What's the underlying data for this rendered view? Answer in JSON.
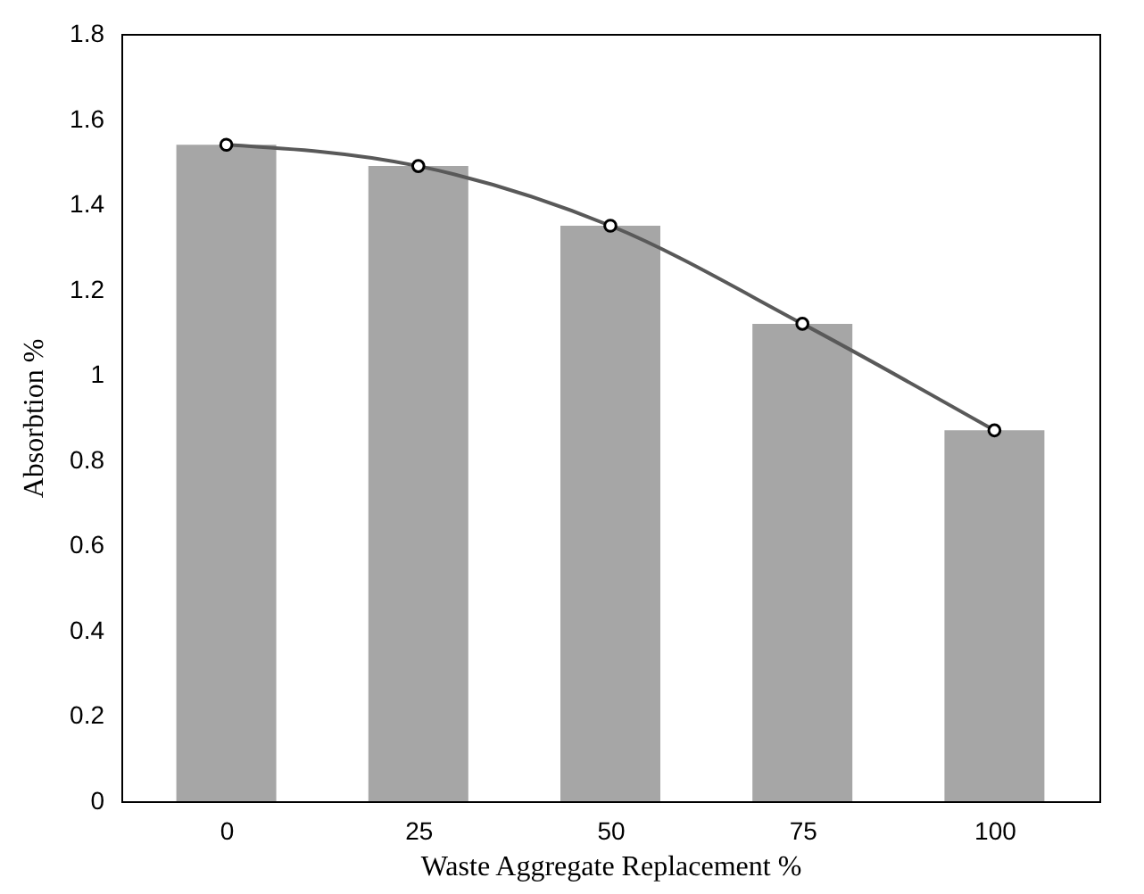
{
  "chart_data": {
    "type": "bar",
    "xlabel": "Waste Aggregate Replacement %",
    "ylabel": "Absorbtion %",
    "categories": [
      "0",
      "25",
      "50",
      "75",
      "100"
    ],
    "series": [
      {
        "color": "#a6a6a6",
        "values": [
          1.54,
          1.49,
          1.35,
          1.12,
          0.87
        ]
      },
      {
        "type": "line",
        "color": "#595959",
        "values": [
          1.54,
          1.49,
          1.35,
          1.12,
          0.87
        ]
      }
    ],
    "marker": "circle",
    "line_style": "solid",
    "grid": false,
    "ylim": [
      0,
      1.8
    ],
    "yticks": [
      0,
      0.2,
      0.4,
      0.6,
      0.8,
      1,
      1.2,
      1.4,
      1.6,
      1.8
    ]
  }
}
